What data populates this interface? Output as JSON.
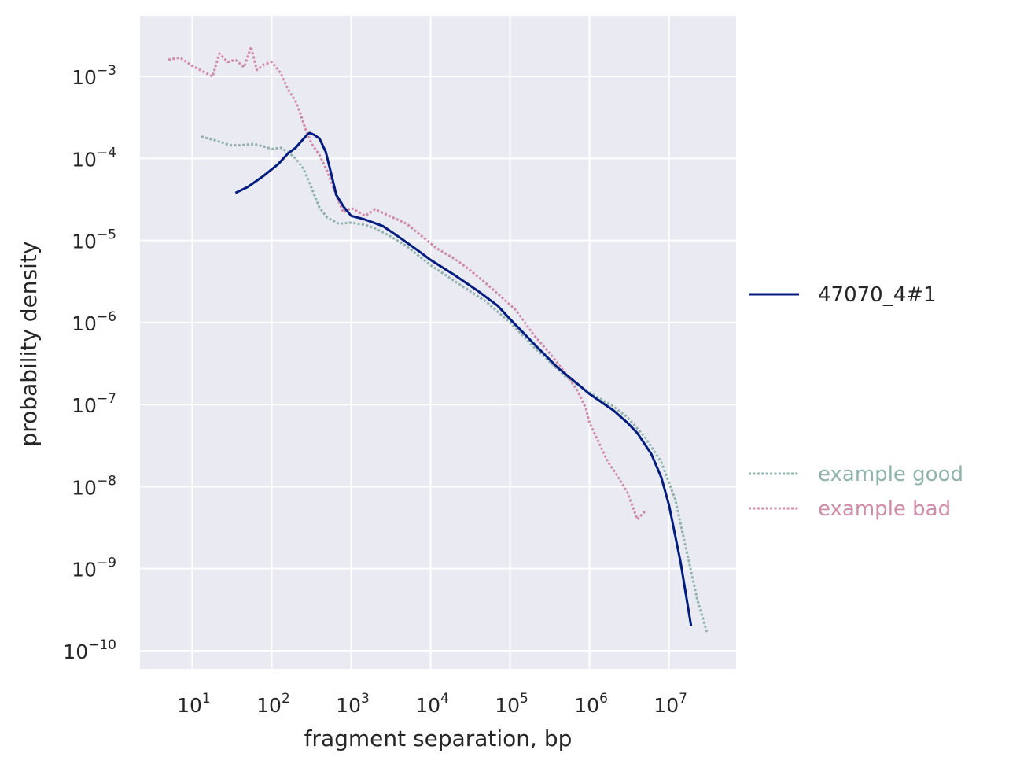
{
  "chart_data": {
    "type": "line",
    "xlabel": "fragment separation, bp",
    "ylabel": "probability density",
    "x_scale": "log",
    "y_scale": "log",
    "xlim": [
      2.2,
      70000000
    ],
    "ylim": [
      6e-11,
      0.0055
    ],
    "x_ticks": [
      {
        "base": "10",
        "exp": "1",
        "value": 10
      },
      {
        "base": "10",
        "exp": "2",
        "value": 100
      },
      {
        "base": "10",
        "exp": "3",
        "value": 1000
      },
      {
        "base": "10",
        "exp": "4",
        "value": 10000
      },
      {
        "base": "10",
        "exp": "5",
        "value": 100000
      },
      {
        "base": "10",
        "exp": "6",
        "value": 1000000
      },
      {
        "base": "10",
        "exp": "7",
        "value": 10000000
      }
    ],
    "y_ticks": [
      {
        "base": "10",
        "exp": "−3",
        "value": 0.001
      },
      {
        "base": "10",
        "exp": "−4",
        "value": 0.0001
      },
      {
        "base": "10",
        "exp": "−5",
        "value": 1e-05
      },
      {
        "base": "10",
        "exp": "−6",
        "value": 1e-06
      },
      {
        "base": "10",
        "exp": "−7",
        "value": 1e-07
      },
      {
        "base": "10",
        "exp": "−8",
        "value": 1e-08
      },
      {
        "base": "10",
        "exp": "−9",
        "value": 1e-09
      },
      {
        "base": "10",
        "exp": "−10",
        "value": 1e-10
      }
    ],
    "grid": true,
    "legend_placement": "right",
    "series": [
      {
        "name": "47070_4#1",
        "style": "solid",
        "color": "#001c7f",
        "points": [
          [
            35,
            3.8e-05
          ],
          [
            50,
            4.5e-05
          ],
          [
            80,
            6.2e-05
          ],
          [
            120,
            8.5e-05
          ],
          [
            160,
            0.000115
          ],
          [
            200,
            0.000135
          ],
          [
            240,
            0.000165
          ],
          [
            280,
            0.000195
          ],
          [
            300,
            0.000205
          ],
          [
            340,
            0.000195
          ],
          [
            400,
            0.000175
          ],
          [
            480,
            0.00012
          ],
          [
            560,
            6.5e-05
          ],
          [
            650,
            3.6e-05
          ],
          [
            800,
            2.6e-05
          ],
          [
            1000,
            2e-05
          ],
          [
            1500,
            1.8e-05
          ],
          [
            2500,
            1.5e-05
          ],
          [
            4000,
            1.1e-05
          ],
          [
            7000,
            7.5e-06
          ],
          [
            10000,
            5.8e-06
          ],
          [
            20000,
            3.8e-06
          ],
          [
            40000,
            2.4e-06
          ],
          [
            70000,
            1.6e-06
          ],
          [
            100000,
            1.1e-06
          ],
          [
            200000,
            5.5e-07
          ],
          [
            400000,
            2.8e-07
          ],
          [
            700000,
            1.8e-07
          ],
          [
            1000000,
            1.35e-07
          ],
          [
            2000000,
            8.5e-08
          ],
          [
            3000000,
            6e-08
          ],
          [
            4000000,
            4.5e-08
          ],
          [
            6000000,
            2.5e-08
          ],
          [
            8000000,
            1.3e-08
          ],
          [
            10000000,
            6e-09
          ],
          [
            14000000,
            1.2e-09
          ],
          [
            19000000,
            2e-10
          ]
        ]
      },
      {
        "name": "example good",
        "style": "dotted",
        "color": "#8fb2ab",
        "points": [
          [
            13,
            0.000185
          ],
          [
            20,
            0.000165
          ],
          [
            30,
            0.000145
          ],
          [
            40,
            0.000145
          ],
          [
            60,
            0.00015
          ],
          [
            80,
            0.00014
          ],
          [
            100,
            0.00013
          ],
          [
            130,
            0.000135
          ],
          [
            160,
            0.00012
          ],
          [
            200,
            0.0001
          ],
          [
            250,
            7.5e-05
          ],
          [
            300,
            5e-05
          ],
          [
            400,
            2.5e-05
          ],
          [
            500,
            1.9e-05
          ],
          [
            700,
            1.6e-05
          ],
          [
            1000,
            1.65e-05
          ],
          [
            1500,
            1.55e-05
          ],
          [
            2000,
            1.4e-05
          ],
          [
            3000,
            1.15e-05
          ],
          [
            5000,
            8.5e-06
          ],
          [
            10000,
            5e-06
          ],
          [
            20000,
            3.2e-06
          ],
          [
            50000,
            1.8e-06
          ],
          [
            100000,
            1e-06
          ],
          [
            200000,
            5e-07
          ],
          [
            500000,
            2.2e-07
          ],
          [
            1000000,
            1.4e-07
          ],
          [
            2000000,
            9.5e-08
          ],
          [
            3000000,
            7e-08
          ],
          [
            5000000,
            4e-08
          ],
          [
            8000000,
            2e-08
          ],
          [
            12000000,
            7e-09
          ],
          [
            17000000,
            1.5e-09
          ],
          [
            23000000,
            4e-10
          ],
          [
            30000000,
            1.7e-10
          ]
        ]
      },
      {
        "name": "example bad",
        "style": "dotted",
        "color": "#d08ba8",
        "points": [
          [
            5,
            0.0016
          ],
          [
            7,
            0.0017
          ],
          [
            10,
            0.00135
          ],
          [
            15,
            0.0011
          ],
          [
            18,
            0.001
          ],
          [
            22,
            0.0019
          ],
          [
            28,
            0.0015
          ],
          [
            35,
            0.0016
          ],
          [
            45,
            0.0013
          ],
          [
            55,
            0.0023
          ],
          [
            65,
            0.0012
          ],
          [
            80,
            0.0014
          ],
          [
            100,
            0.0015
          ],
          [
            130,
            0.0011
          ],
          [
            160,
            0.0007
          ],
          [
            200,
            0.0005
          ],
          [
            230,
            0.00035
          ],
          [
            270,
            0.00022
          ],
          [
            320,
            0.00015
          ],
          [
            400,
            0.00011
          ],
          [
            500,
            7e-05
          ],
          [
            650,
            3.5e-05
          ],
          [
            800,
            2.2e-05
          ],
          [
            1000,
            2.5e-05
          ],
          [
            1500,
            2e-05
          ],
          [
            2000,
            2.4e-05
          ],
          [
            3000,
            2e-05
          ],
          [
            5000,
            1.6e-05
          ],
          [
            8000,
            1.1e-05
          ],
          [
            12000,
            8e-06
          ],
          [
            20000,
            6e-06
          ],
          [
            30000,
            4.5e-06
          ],
          [
            50000,
            3e-06
          ],
          [
            80000,
            2e-06
          ],
          [
            120000,
            1.4e-06
          ],
          [
            200000,
            7e-07
          ],
          [
            300000,
            4.5e-07
          ],
          [
            500000,
            2.4e-07
          ],
          [
            700000,
            1.5e-07
          ],
          [
            900000,
            9e-08
          ],
          [
            1000000,
            6e-08
          ],
          [
            1300000,
            3.5e-08
          ],
          [
            1700000,
            2e-08
          ],
          [
            2200000,
            1.4e-08
          ],
          [
            3000000,
            8.5e-09
          ],
          [
            4000000,
            4e-09
          ],
          [
            5000000,
            5e-09
          ]
        ]
      }
    ]
  }
}
